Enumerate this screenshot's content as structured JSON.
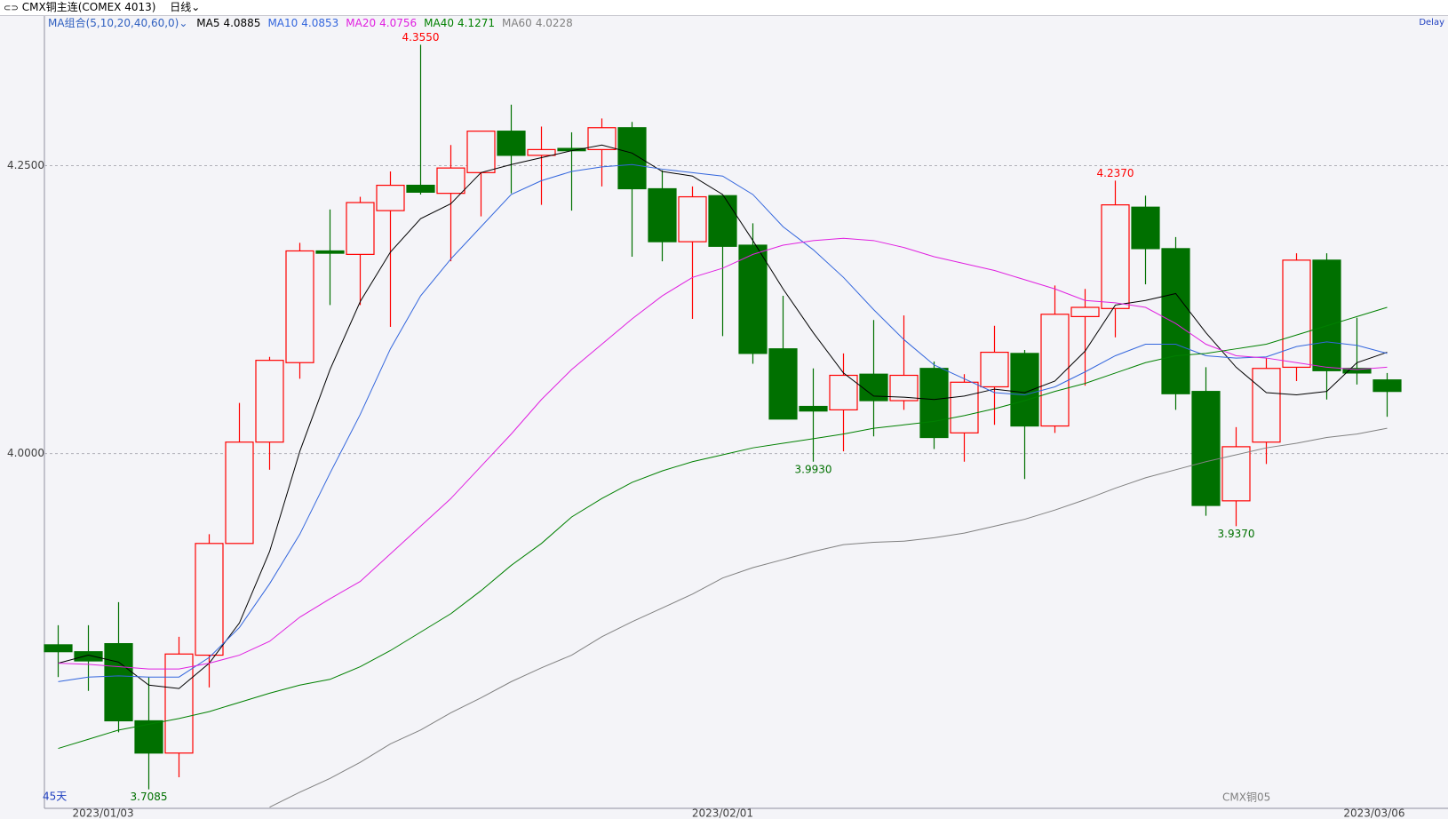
{
  "chart_data": {
    "type": "candlestick",
    "title": "CMX铜主连(COMEX 4013)",
    "period": "日线",
    "ma_group": "MA组合(5,10,20,40,60,0)",
    "days": "45天",
    "contract": "CMX铜05",
    "status": "Delay",
    "categories": [
      "2023/01/03",
      null,
      null,
      null,
      null,
      null,
      null,
      null,
      null,
      null,
      null,
      null,
      null,
      null,
      null,
      null,
      null,
      null,
      null,
      null,
      null,
      null,
      "2023/02/01",
      null,
      null,
      null,
      null,
      null,
      null,
      null,
      null,
      null,
      null,
      null,
      null,
      null,
      null,
      null,
      null,
      null,
      null,
      null,
      null,
      null,
      "2023/03/06"
    ],
    "open": [
      3.834,
      3.828,
      3.835,
      3.768,
      3.74,
      3.825,
      3.922,
      4.01,
      4.079,
      4.176,
      4.173,
      4.211,
      4.233,
      4.226,
      4.244,
      4.28,
      4.259,
      4.265,
      4.264,
      4.283,
      4.23,
      4.184,
      4.224,
      4.181,
      4.091,
      4.041,
      4.038,
      4.069,
      4.046,
      4.074,
      4.018,
      4.058,
      4.087,
      4.024,
      4.119,
      4.126,
      4.214,
      4.178,
      4.054,
      3.959,
      4.01,
      4.075,
      4.168,
      4.074,
      4.064
    ],
    "high": [
      3.851,
      3.851,
      3.871,
      3.806,
      3.841,
      3.93,
      4.044,
      4.084,
      4.183,
      4.212,
      4.223,
      4.245,
      4.355,
      4.268,
      4.28,
      4.303,
      4.284,
      4.279,
      4.291,
      4.288,
      4.246,
      4.232,
      4.224,
      4.2,
      4.137,
      4.074,
      4.087,
      4.116,
      4.12,
      4.08,
      4.069,
      4.111,
      4.09,
      4.146,
      4.143,
      4.237,
      4.224,
      4.188,
      4.075,
      4.023,
      4.083,
      4.174,
      4.174,
      4.118,
      4.07
    ],
    "low": [
      3.806,
      3.794,
      3.758,
      3.7085,
      3.719,
      3.797,
      3.922,
      3.986,
      4.065,
      4.129,
      4.129,
      4.11,
      4.225,
      4.167,
      4.206,
      4.226,
      4.216,
      4.211,
      4.232,
      4.171,
      4.167,
      4.117,
      4.102,
      4.078,
      4.03,
      3.993,
      4.002,
      4.015,
      4.038,
      4.004,
      3.993,
      4.025,
      3.978,
      4.018,
      4.059,
      4.101,
      4.147,
      4.038,
      3.946,
      3.937,
      3.991,
      4.063,
      4.047,
      4.06,
      4.032
    ],
    "close": [
      3.828,
      3.82,
      3.768,
      3.74,
      3.826,
      3.922,
      4.01,
      4.081,
      4.176,
      4.174,
      4.218,
      4.233,
      4.227,
      4.248,
      4.28,
      4.259,
      4.264,
      4.263,
      4.283,
      4.23,
      4.184,
      4.223,
      4.18,
      4.087,
      4.03,
      4.037,
      4.068,
      4.046,
      4.068,
      4.014,
      4.062,
      4.088,
      4.024,
      4.121,
      4.127,
      4.216,
      4.178,
      4.052,
      3.955,
      4.006,
      4.074,
      4.168,
      4.072,
      4.07,
      4.054
    ],
    "up_color": "#ff0000",
    "down_color": "#007000",
    "series": [
      {
        "name": "MA5",
        "color": "#000000",
        "legend_value": 4.0885,
        "values": [
          3.818,
          3.825,
          3.819,
          3.799,
          3.796,
          3.818,
          3.853,
          3.915,
          4.002,
          4.073,
          4.132,
          4.175,
          4.204,
          4.217,
          4.244,
          4.251,
          4.257,
          4.263,
          4.268,
          4.261,
          4.245,
          4.241,
          4.225,
          4.185,
          4.143,
          4.105,
          4.07,
          4.05,
          4.049,
          4.047,
          4.05,
          4.056,
          4.053,
          4.063,
          4.089,
          4.129,
          4.133,
          4.139,
          4.105,
          4.075,
          4.053,
          4.051,
          4.054,
          4.079,
          4.088
        ]
      },
      {
        "name": "MA10",
        "color": "#3366dd",
        "legend_value": 4.0853,
        "values": [
          3.802,
          3.806,
          3.807,
          3.806,
          3.806,
          3.823,
          3.849,
          3.887,
          3.93,
          3.983,
          4.034,
          4.091,
          4.137,
          4.169,
          4.197,
          4.225,
          4.237,
          4.245,
          4.249,
          4.251,
          4.247,
          4.244,
          4.241,
          4.225,
          4.197,
          4.177,
          4.153,
          4.125,
          4.099,
          4.077,
          4.065,
          4.053,
          4.051,
          4.058,
          4.071,
          4.085,
          4.095,
          4.095,
          4.085,
          4.083,
          4.084,
          4.093,
          4.097,
          4.094,
          4.087
        ]
      },
      {
        "name": "MA20",
        "color": "#e020e0",
        "legend_value": 4.0756,
        "values": [
          3.818,
          3.817,
          3.815,
          3.813,
          3.813,
          3.818,
          3.825,
          3.837,
          3.858,
          3.874,
          3.889,
          3.913,
          3.937,
          3.961,
          3.989,
          4.017,
          4.047,
          4.073,
          4.095,
          4.117,
          4.137,
          4.153,
          4.161,
          4.173,
          4.181,
          4.185,
          4.187,
          4.185,
          4.179,
          4.171,
          4.165,
          4.159,
          4.151,
          4.143,
          4.133,
          4.131,
          4.127,
          4.113,
          4.095,
          4.085,
          4.083,
          4.079,
          4.075,
          4.073,
          4.075
        ]
      },
      {
        "name": "MA40",
        "color": "#008000",
        "legend_value": 4.1271,
        "values": [
          3.744,
          3.752,
          3.76,
          3.765,
          3.77,
          3.776,
          3.784,
          3.792,
          3.799,
          3.804,
          3.815,
          3.829,
          3.845,
          3.861,
          3.881,
          3.903,
          3.922,
          3.945,
          3.961,
          3.975,
          3.985,
          3.993,
          3.999,
          4.005,
          4.009,
          4.013,
          4.017,
          4.022,
          4.025,
          4.028,
          4.033,
          4.039,
          4.046,
          4.054,
          4.061,
          4.07,
          4.079,
          4.085,
          4.087,
          4.091,
          4.095,
          4.103,
          4.111,
          4.119,
          4.127
        ]
      },
      {
        "name": "MA60",
        "color": "#808080",
        "legend_value": 4.0228,
        "values": [
          null,
          null,
          null,
          null,
          null,
          null,
          null,
          3.693,
          3.706,
          3.718,
          3.732,
          3.748,
          3.76,
          3.775,
          3.788,
          3.802,
          3.814,
          3.825,
          3.841,
          3.854,
          3.866,
          3.878,
          3.892,
          3.901,
          3.908,
          3.915,
          3.921,
          3.923,
          3.924,
          3.927,
          3.931,
          3.937,
          3.943,
          3.951,
          3.96,
          3.97,
          3.979,
          3.986,
          3.993,
          3.999,
          4.005,
          4.009,
          4.014,
          4.017,
          4.022
        ]
      }
    ],
    "annotations": [
      {
        "value": 4.355,
        "label": "4.3550"
      },
      {
        "value": 4.237,
        "label": "4.2370"
      },
      {
        "value": 3.7085,
        "label": "3.7085"
      },
      {
        "value": 3.993,
        "label": "3.9930"
      },
      {
        "value": 3.937,
        "label": "3.9370"
      }
    ],
    "ylim": [
      3.692,
      4.38
    ],
    "yticks": [
      {
        "value": 4.25,
        "label": "4.2500"
      },
      {
        "value": 4.0,
        "label": "4.0000"
      }
    ],
    "grid": true
  }
}
